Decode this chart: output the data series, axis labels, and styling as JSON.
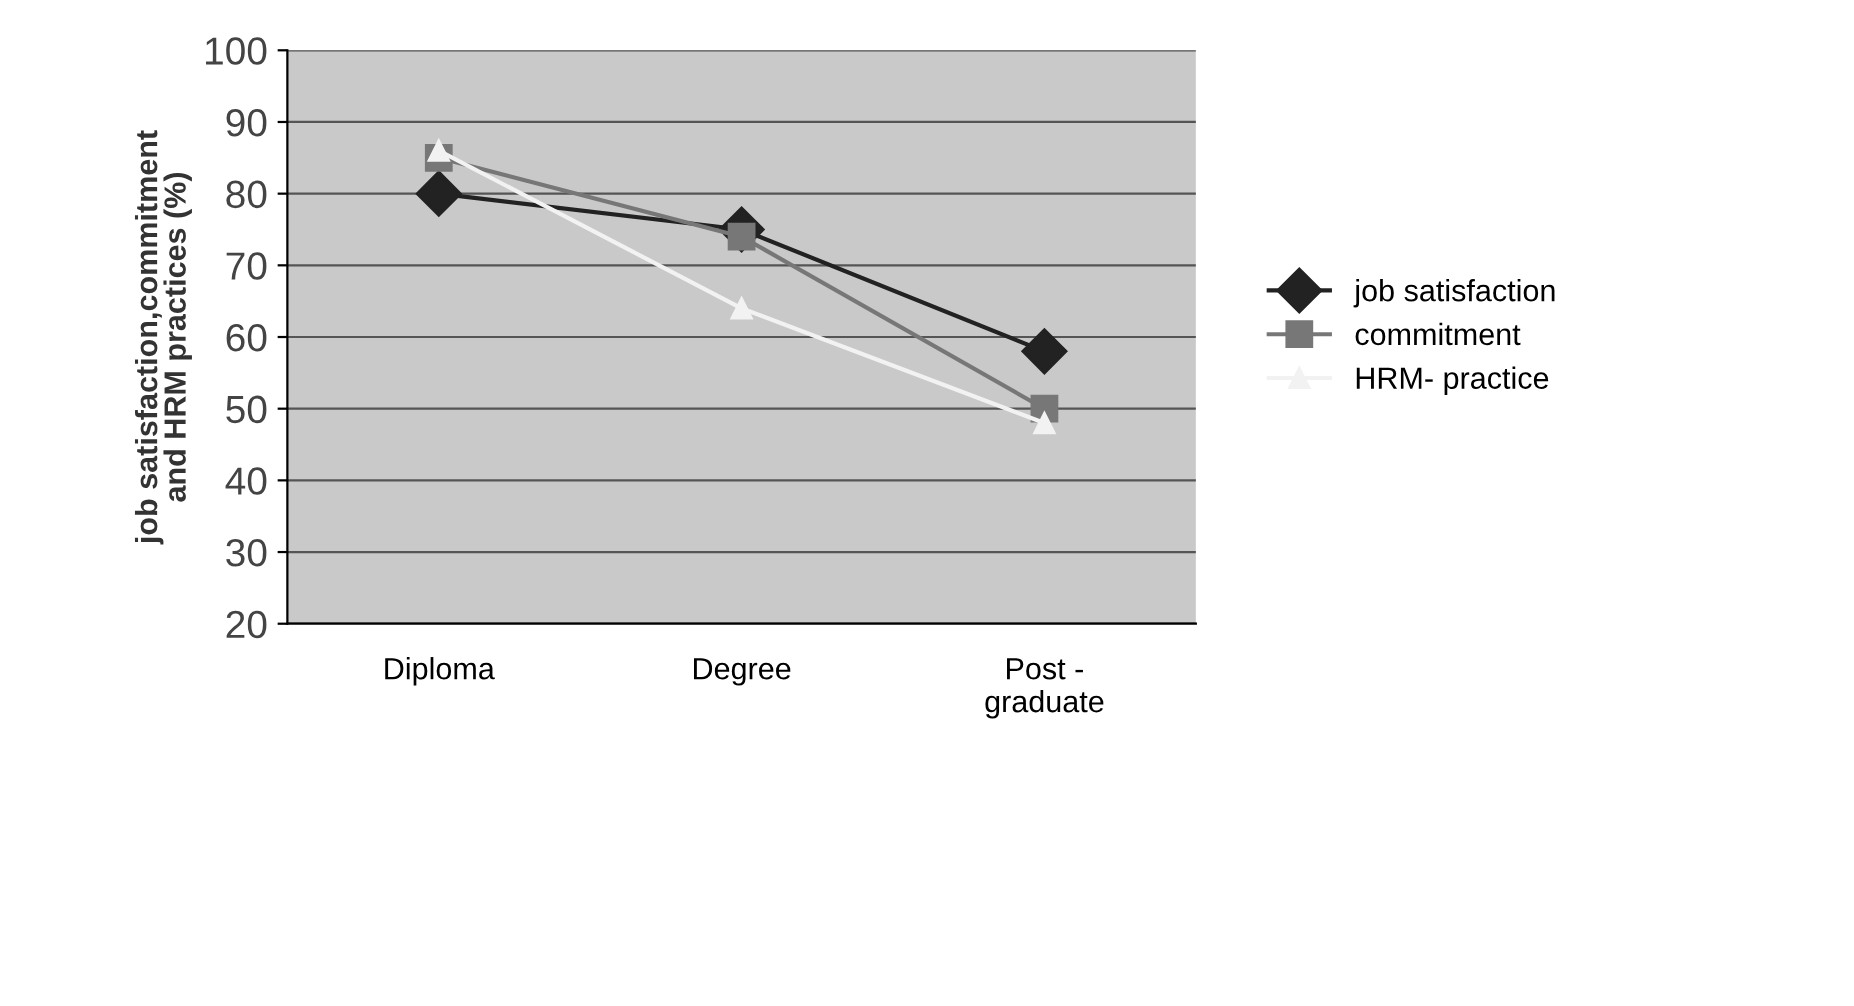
{
  "chart_data": {
    "type": "line",
    "ylabel": "job satisfaction,commitment\nand HRM practices (%)",
    "categories": [
      "Diploma",
      "Degree",
      "Post -\ngraduate"
    ],
    "series": [
      {
        "name": "job satisfaction",
        "color": "#222222",
        "values": [
          80,
          75,
          58
        ],
        "marker": "diamond"
      },
      {
        "name": "commitment",
        "color": "#777777",
        "values": [
          85,
          74,
          50
        ],
        "marker": "square"
      },
      {
        "name": "HRM- practice",
        "color": "#f2f2f2",
        "values": [
          86,
          64,
          48
        ],
        "marker": "triangle"
      }
    ],
    "ylim": [
      20,
      100
    ],
    "yticks": [
      20,
      30,
      40,
      50,
      60,
      70,
      80,
      90,
      100
    ],
    "grid": "y",
    "legend": "right",
    "line_style": "solid"
  }
}
